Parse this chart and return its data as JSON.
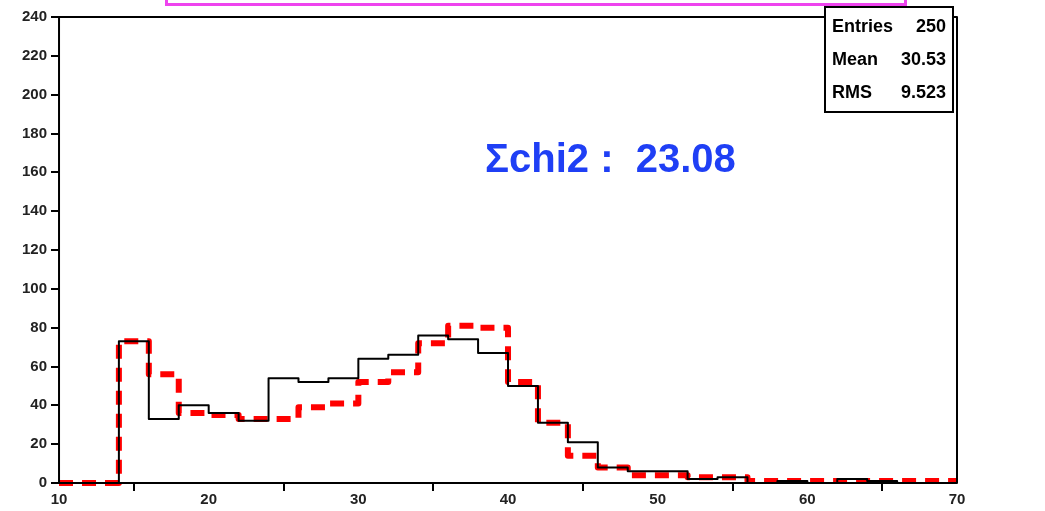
{
  "chart_data": {
    "type": "histogram",
    "bins": [
      10,
      12,
      14,
      16,
      18,
      20,
      22,
      24,
      26,
      28,
      30,
      32,
      34,
      36,
      38,
      40,
      42,
      44,
      46,
      48,
      50,
      52,
      54,
      56,
      58,
      60,
      62,
      64,
      66,
      68,
      70
    ],
    "series": [
      {
        "color": "#000000",
        "line_style": "solid",
        "values": [
          0,
          0,
          73,
          33,
          40,
          36,
          32,
          54,
          52,
          54,
          64,
          66,
          76,
          74,
          67,
          50,
          31,
          21,
          8,
          6,
          6,
          2,
          3,
          0,
          1,
          0,
          2,
          1,
          0,
          0
        ]
      },
      {
        "color": "#ff0000",
        "line_style": "dashed",
        "values": [
          0,
          0,
          73,
          56,
          36,
          35,
          33,
          33,
          39,
          41,
          52,
          57,
          72,
          81,
          80,
          52,
          31,
          14,
          8,
          4,
          4,
          3,
          3,
          1,
          1,
          1,
          1,
          1,
          1,
          1
        ]
      }
    ],
    "xlim": [
      10,
      70
    ],
    "xticks": [
      10,
      20,
      30,
      40,
      50,
      60,
      70
    ],
    "ylim": [
      0,
      240
    ],
    "yticks": [
      0,
      20,
      40,
      60,
      80,
      100,
      120,
      140,
      160,
      180,
      200,
      220,
      240
    ],
    "legend": false,
    "annotations": [
      "Entries",
      "250",
      "Mean",
      "30.53",
      "RMS",
      "9.523",
      "Σchi2 :  23.08"
    ]
  }
}
